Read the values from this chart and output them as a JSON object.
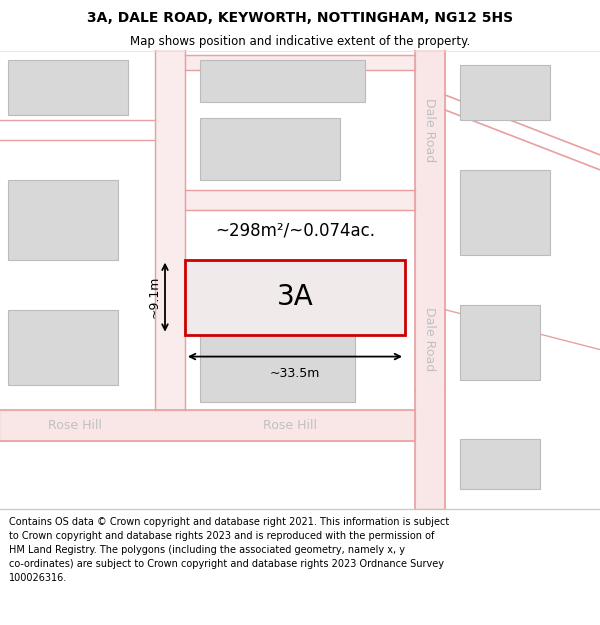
{
  "title": "3A, DALE ROAD, KEYWORTH, NOTTINGHAM, NG12 5HS",
  "subtitle": "Map shows position and indicative extent of the property.",
  "footer": "Contains OS data © Crown copyright and database right 2021. This information is subject\nto Crown copyright and database rights 2023 and is reproduced with the permission of\nHM Land Registry. The polygons (including the associated geometry, namely x, y\nco-ordinates) are subject to Crown copyright and database rights 2023 Ordnance Survey\n100026316.",
  "bg_color": "#ffffff",
  "map_bg": "#ffffff",
  "road_color": "#e8a0a0",
  "building_fill": "#d8d8d8",
  "building_edge": "#bbbbbb",
  "highlight_fill": "#f0eaea",
  "highlight_edge": "#cc0000",
  "road_text_color": "#c0c0c0",
  "area_text": "~298m²/~0.074ac.",
  "label_3A": "3A",
  "width_label": "~33.5m",
  "height_label": "~9.1m",
  "road_label_dale": "Dale Road",
  "road_label_rosehill": "Rose Hill",
  "title_fontsize": 10,
  "subtitle_fontsize": 8.5,
  "footer_fontsize": 7
}
